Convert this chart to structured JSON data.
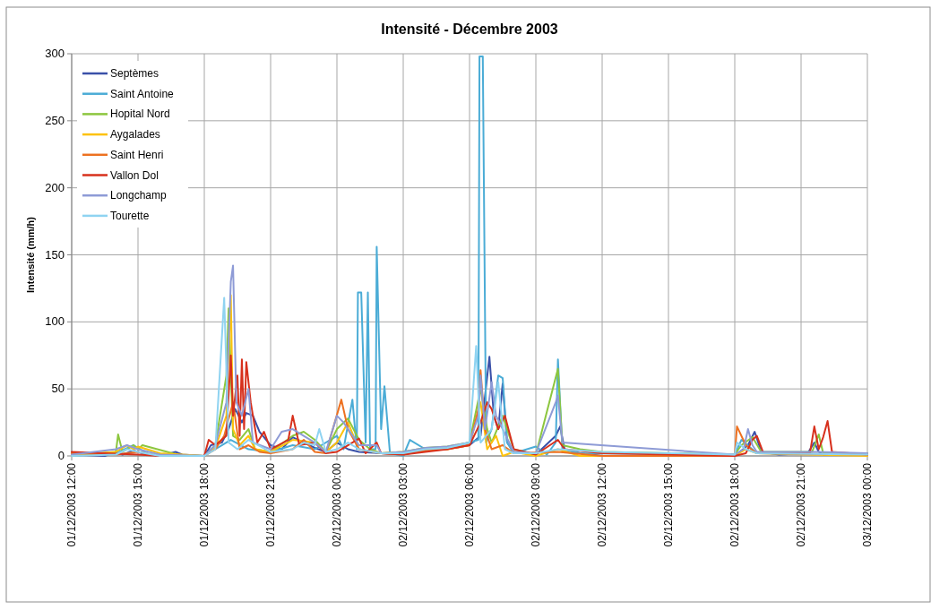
{
  "chart_data": {
    "type": "line",
    "title": "Intensité - Décembre 2003",
    "ylabel": "Intensité (mm/h)",
    "xlim": [
      "2003-12-01T12:00",
      "2003-12-03T00:00"
    ],
    "ylim": [
      0,
      300
    ],
    "yticks": [
      0,
      50,
      100,
      150,
      200,
      250,
      300
    ],
    "xticks": [
      {
        "value": "2003-12-01T12:00",
        "label": "01/12/2003 12:00"
      },
      {
        "value": "2003-12-01T15:00",
        "label": "01/12/2003 15:00"
      },
      {
        "value": "2003-12-01T18:00",
        "label": "01/12/2003 18:00"
      },
      {
        "value": "2003-12-01T21:00",
        "label": "01/12/2003 21:00"
      },
      {
        "value": "2003-12-02T00:00",
        "label": "02/12/2003 00:00"
      },
      {
        "value": "2003-12-02T03:00",
        "label": "02/12/2003 03:00"
      },
      {
        "value": "2003-12-02T06:00",
        "label": "02/12/2003 06:00"
      },
      {
        "value": "2003-12-02T09:00",
        "label": "02/12/2003 09:00"
      },
      {
        "value": "2003-12-02T12:00",
        "label": "02/12/2003 12:00"
      },
      {
        "value": "2003-12-02T15:00",
        "label": "02/12/2003 15:00"
      },
      {
        "value": "2003-12-02T18:00",
        "label": "02/12/2003 18:00"
      },
      {
        "value": "2003-12-02T21:00",
        "label": "02/12/2003 21:00"
      },
      {
        "value": "2003-12-03T00:00",
        "label": "03/12/2003 00:00"
      }
    ],
    "grid": true,
    "legend": "top left",
    "marker": "none",
    "line_style": "solid",
    "series": [
      {
        "name": "Septèmes",
        "color": "#3a50a8",
        "x": [
          "2003-12-01T12:00",
          "2003-12-01T13:30",
          "2003-12-01T14:00",
          "2003-12-01T14:18",
          "2003-12-01T14:48",
          "2003-12-01T15:12",
          "2003-12-01T16:00",
          "2003-12-01T16:42",
          "2003-12-01T17:00",
          "2003-12-01T18:00",
          "2003-12-01T18:18",
          "2003-12-01T18:48",
          "2003-12-01T19:06",
          "2003-12-01T19:24",
          "2003-12-01T19:42",
          "2003-12-01T19:54",
          "2003-12-01T20:12",
          "2003-12-01T20:30",
          "2003-12-01T21:00",
          "2003-12-01T21:30",
          "2003-12-01T22:00",
          "2003-12-01T22:30",
          "2003-12-01T23:00",
          "2003-12-01T23:30",
          "2003-12-02T00:00",
          "2003-12-02T00:30",
          "2003-12-02T01:00",
          "2003-12-02T02:00",
          "2003-12-02T03:00",
          "2003-12-02T04:00",
          "2003-12-02T05:00",
          "2003-12-02T06:00",
          "2003-12-02T06:30",
          "2003-12-02T06:54",
          "2003-12-02T07:06",
          "2003-12-02T07:18",
          "2003-12-02T07:30",
          "2003-12-02T07:42",
          "2003-12-02T08:00",
          "2003-12-02T09:00",
          "2003-12-02T09:54",
          "2003-12-02T10:06",
          "2003-12-02T10:18",
          "2003-12-02T11:00",
          "2003-12-02T12:00",
          "2003-12-02T18:00",
          "2003-12-02T18:36",
          "2003-12-02T18:54",
          "2003-12-02T19:12",
          "2003-12-02T20:00",
          "2003-12-02T21:18",
          "2003-12-02T21:36",
          "2003-12-02T21:48",
          "2003-12-02T22:00",
          "2003-12-03T00:00"
        ],
        "values": [
          1,
          0,
          3,
          1,
          4,
          2,
          0,
          3,
          1,
          0,
          8,
          10,
          20,
          35,
          25,
          32,
          30,
          18,
          8,
          5,
          14,
          10,
          6,
          3,
          10,
          5,
          3,
          2,
          1,
          5,
          6,
          8,
          15,
          74,
          30,
          20,
          54,
          10,
          3,
          1,
          15,
          22,
          5,
          2,
          0,
          0,
          8,
          18,
          3,
          1,
          2,
          10,
          3,
          1,
          1
        ]
      },
      {
        "name": "Saint Antoine",
        "color": "#4bacd6",
        "x": [
          "2003-12-01T12:00",
          "2003-12-01T14:00",
          "2003-12-01T14:48",
          "2003-12-01T15:30",
          "2003-12-01T18:00",
          "2003-12-01T18:30",
          "2003-12-01T19:12",
          "2003-12-01T20:00",
          "2003-12-01T21:00",
          "2003-12-01T22:00",
          "2003-12-01T23:00",
          "2003-12-02T00:00",
          "2003-12-02T00:18",
          "2003-12-02T00:42",
          "2003-12-02T00:54",
          "2003-12-02T00:57",
          "2003-12-02T01:06",
          "2003-12-02T01:18",
          "2003-12-02T01:24",
          "2003-12-02T01:30",
          "2003-12-02T01:45",
          "2003-12-02T01:48",
          "2003-12-02T02:00",
          "2003-12-02T02:09",
          "2003-12-02T02:24",
          "2003-12-02T03:00",
          "2003-12-02T03:18",
          "2003-12-02T04:00",
          "2003-12-02T05:00",
          "2003-12-02T06:00",
          "2003-12-02T06:24",
          "2003-12-02T06:27",
          "2003-12-02T06:36",
          "2003-12-02T06:45",
          "2003-12-02T07:00",
          "2003-12-02T07:18",
          "2003-12-02T07:30",
          "2003-12-02T07:42",
          "2003-12-02T08:00",
          "2003-12-02T09:00",
          "2003-12-02T09:30",
          "2003-12-02T09:54",
          "2003-12-02T10:00",
          "2003-12-02T10:12",
          "2003-12-02T11:00",
          "2003-12-02T18:00",
          "2003-12-02T18:18",
          "2003-12-02T19:00",
          "2003-12-03T00:00"
        ],
        "values": [
          0,
          2,
          8,
          1,
          0,
          5,
          12,
          5,
          3,
          8,
          5,
          15,
          5,
          42,
          5,
          122,
          122,
          10,
          122,
          5,
          5,
          156,
          20,
          52,
          2,
          0,
          12,
          5,
          6,
          10,
          12,
          298,
          298,
          10,
          20,
          60,
          58,
          10,
          2,
          7,
          1,
          10,
          72,
          5,
          2,
          1,
          12,
          2,
          1
        ]
      },
      {
        "name": "Hopital Nord",
        "color": "#8cc63e",
        "x": [
          "2003-12-01T12:00",
          "2003-12-01T14:00",
          "2003-12-01T14:06",
          "2003-12-01T14:18",
          "2003-12-01T14:48",
          "2003-12-01T15:00",
          "2003-12-01T15:12",
          "2003-12-01T17:00",
          "2003-12-01T18:00",
          "2003-12-01T18:30",
          "2003-12-01T19:00",
          "2003-12-01T19:06",
          "2003-12-01T19:18",
          "2003-12-01T19:36",
          "2003-12-01T20:00",
          "2003-12-01T20:18",
          "2003-12-01T21:00",
          "2003-12-01T22:00",
          "2003-12-01T22:30",
          "2003-12-01T23:00",
          "2003-12-01T23:30",
          "2003-12-02T00:00",
          "2003-12-02T00:30",
          "2003-12-02T01:00",
          "2003-12-02T01:30",
          "2003-12-02T02:00",
          "2003-12-02T03:00",
          "2003-12-02T04:00",
          "2003-12-02T05:00",
          "2003-12-02T06:00",
          "2003-12-02T06:30",
          "2003-12-02T06:48",
          "2003-12-02T07:00",
          "2003-12-02T07:30",
          "2003-12-02T08:00",
          "2003-12-02T09:00",
          "2003-12-02T10:00",
          "2003-12-02T10:12",
          "2003-12-02T11:00",
          "2003-12-02T12:00",
          "2003-12-02T18:00",
          "2003-12-02T18:18",
          "2003-12-02T18:48",
          "2003-12-02T19:12",
          "2003-12-02T21:30",
          "2003-12-02T21:48",
          "2003-12-02T22:00",
          "2003-12-03T00:00"
        ],
        "values": [
          0,
          3,
          16,
          3,
          8,
          5,
          8,
          0,
          0,
          8,
          60,
          110,
          15,
          12,
          20,
          5,
          3,
          15,
          18,
          12,
          3,
          20,
          28,
          12,
          5,
          2,
          3,
          6,
          7,
          10,
          50,
          20,
          10,
          30,
          5,
          1,
          65,
          8,
          5,
          3,
          1,
          8,
          14,
          3,
          3,
          16,
          2,
          2
        ]
      },
      {
        "name": "Aygalades",
        "color": "#fdc20c",
        "x": [
          "2003-12-01T12:00",
          "2003-12-01T14:00",
          "2003-12-01T14:30",
          "2003-12-01T14:48",
          "2003-12-01T15:00",
          "2003-12-01T16:00",
          "2003-12-01T18:00",
          "2003-12-01T18:30",
          "2003-12-01T19:00",
          "2003-12-01T19:12",
          "2003-12-01T19:18",
          "2003-12-01T19:36",
          "2003-12-01T20:00",
          "2003-12-01T20:18",
          "2003-12-01T21:00",
          "2003-12-01T22:00",
          "2003-12-01T23:00",
          "2003-12-01T23:30",
          "2003-12-02T00:00",
          "2003-12-02T00:30",
          "2003-12-02T01:00",
          "2003-12-02T02:00",
          "2003-12-02T03:00",
          "2003-12-02T04:00",
          "2003-12-02T05:00",
          "2003-12-02T06:00",
          "2003-12-02T06:30",
          "2003-12-02T06:48",
          "2003-12-02T07:12",
          "2003-12-02T07:30",
          "2003-12-02T08:00",
          "2003-12-02T09:00",
          "2003-12-02T10:00",
          "2003-12-02T11:00",
          "2003-12-02T18:00",
          "2003-12-02T18:30",
          "2003-12-02T19:00",
          "2003-12-03T00:00"
        ],
        "values": [
          1,
          3,
          8,
          5,
          7,
          2,
          0,
          6,
          30,
          120,
          20,
          8,
          15,
          5,
          3,
          12,
          10,
          3,
          10,
          25,
          5,
          2,
          3,
          5,
          5,
          8,
          40,
          5,
          15,
          0,
          3,
          0,
          5,
          0,
          0,
          5,
          2,
          0
        ]
      },
      {
        "name": "Saint Henri",
        "color": "#ed7121",
        "x": [
          "2003-12-01T12:00",
          "2003-12-01T14:00",
          "2003-12-01T15:00",
          "2003-12-01T16:00",
          "2003-12-01T18:00",
          "2003-12-01T18:30",
          "2003-12-01T18:54",
          "2003-12-01T19:18",
          "2003-12-01T19:36",
          "2003-12-01T20:00",
          "2003-12-01T20:30",
          "2003-12-01T21:00",
          "2003-12-01T22:00",
          "2003-12-01T22:30",
          "2003-12-01T23:00",
          "2003-12-01T23:30",
          "2003-12-02T00:12",
          "2003-12-02T00:30",
          "2003-12-02T01:00",
          "2003-12-02T02:00",
          "2003-12-02T03:00",
          "2003-12-02T04:00",
          "2003-12-02T05:00",
          "2003-12-02T06:00",
          "2003-12-02T06:24",
          "2003-12-02T06:30",
          "2003-12-02T06:42",
          "2003-12-02T07:00",
          "2003-12-02T07:30",
          "2003-12-02T08:00",
          "2003-12-02T10:00",
          "2003-12-02T12:00",
          "2003-12-02T18:00",
          "2003-12-02T18:06",
          "2003-12-02T18:30",
          "2003-12-02T19:00",
          "2003-12-03T00:00"
        ],
        "values": [
          2,
          1,
          3,
          0,
          0,
          5,
          15,
          40,
          5,
          8,
          3,
          2,
          5,
          12,
          3,
          2,
          42,
          20,
          5,
          2,
          1,
          4,
          5,
          8,
          35,
          64,
          20,
          5,
          8,
          2,
          3,
          0,
          0,
          22,
          8,
          2,
          1
        ]
      },
      {
        "name": "Vallon Dol",
        "color": "#d7301c",
        "x": [
          "2003-12-01T12:00",
          "2003-12-01T15:00",
          "2003-12-01T16:00",
          "2003-12-01T18:00",
          "2003-12-01T18:12",
          "2003-12-01T18:30",
          "2003-12-01T19:00",
          "2003-12-01T19:12",
          "2003-12-01T19:18",
          "2003-12-01T19:30",
          "2003-12-01T19:36",
          "2003-12-01T19:42",
          "2003-12-01T19:48",
          "2003-12-01T19:54",
          "2003-12-01T20:06",
          "2003-12-01T20:24",
          "2003-12-01T20:42",
          "2003-12-01T21:00",
          "2003-12-01T21:48",
          "2003-12-01T22:00",
          "2003-12-01T22:18",
          "2003-12-01T23:00",
          "2003-12-01T23:30",
          "2003-12-02T00:00",
          "2003-12-02T00:30",
          "2003-12-02T01:00",
          "2003-12-02T01:18",
          "2003-12-02T01:48",
          "2003-12-02T02:00",
          "2003-12-02T03:00",
          "2003-12-02T04:00",
          "2003-12-02T05:00",
          "2003-12-02T06:00",
          "2003-12-02T06:30",
          "2003-12-02T06:48",
          "2003-12-02T07:00",
          "2003-12-02T07:18",
          "2003-12-02T07:36",
          "2003-12-02T08:00",
          "2003-12-02T09:00",
          "2003-12-02T10:00",
          "2003-12-02T10:18",
          "2003-12-02T12:00",
          "2003-12-02T18:00",
          "2003-12-02T18:30",
          "2003-12-02T18:48",
          "2003-12-02T19:00",
          "2003-12-02T19:18",
          "2003-12-02T21:24",
          "2003-12-02T21:36",
          "2003-12-02T21:48",
          "2003-12-02T22:00",
          "2003-12-02T22:12",
          "2003-12-02T22:24",
          "2003-12-03T00:00"
        ],
        "values": [
          3,
          1,
          0,
          0,
          12,
          8,
          15,
          75,
          30,
          60,
          15,
          72,
          20,
          70,
          40,
          10,
          18,
          5,
          12,
          30,
          8,
          10,
          2,
          3,
          8,
          13,
          2,
          10,
          2,
          1,
          3,
          5,
          8,
          25,
          40,
          35,
          20,
          30,
          5,
          1,
          12,
          5,
          2,
          0,
          2,
          12,
          15,
          2,
          2,
          22,
          5,
          14,
          26,
          3,
          1
        ]
      },
      {
        "name": "Longchamp",
        "color": "#8e9bd6",
        "x": [
          "2003-12-01T12:00",
          "2003-12-01T14:00",
          "2003-12-01T14:30",
          "2003-12-01T15:00",
          "2003-12-01T16:00",
          "2003-12-01T18:00",
          "2003-12-01T18:30",
          "2003-12-01T19:00",
          "2003-12-01T19:12",
          "2003-12-01T19:18",
          "2003-12-01T19:27",
          "2003-12-01T19:42",
          "2003-12-01T20:00",
          "2003-12-01T20:12",
          "2003-12-01T21:00",
          "2003-12-01T21:30",
          "2003-12-01T22:00",
          "2003-12-01T22:30",
          "2003-12-01T23:00",
          "2003-12-01T23:30",
          "2003-12-02T00:00",
          "2003-12-02T00:18",
          "2003-12-02T01:00",
          "2003-12-02T01:48",
          "2003-12-02T02:00",
          "2003-12-02T03:00",
          "2003-12-02T04:00",
          "2003-12-02T05:00",
          "2003-12-02T06:00",
          "2003-12-02T06:24",
          "2003-12-02T06:30",
          "2003-12-02T06:42",
          "2003-12-02T07:00",
          "2003-12-02T07:12",
          "2003-12-02T07:30",
          "2003-12-02T08:00",
          "2003-12-02T09:00",
          "2003-12-02T09:54",
          "2003-12-02T10:00",
          "2003-12-02T10:12",
          "2003-12-02T18:00",
          "2003-12-02T18:24",
          "2003-12-02T18:36",
          "2003-12-02T18:48",
          "2003-12-02T19:00",
          "2003-12-02T21:30",
          "2003-12-02T21:48",
          "2003-12-03T00:00"
        ],
        "values": [
          1,
          5,
          8,
          5,
          1,
          0,
          8,
          40,
          130,
          142,
          40,
          30,
          50,
          10,
          5,
          18,
          20,
          15,
          10,
          3,
          30,
          25,
          8,
          8,
          2,
          3,
          6,
          7,
          10,
          30,
          60,
          20,
          55,
          30,
          20,
          3,
          2,
          40,
          45,
          10,
          1,
          5,
          20,
          8,
          3,
          3,
          3,
          2
        ]
      },
      {
        "name": "Tourette",
        "color": "#8fd3f1",
        "x": [
          "2003-12-01T12:00",
          "2003-12-01T14:00",
          "2003-12-01T14:30",
          "2003-12-01T15:00",
          "2003-12-01T16:00",
          "2003-12-01T18:00",
          "2003-12-01T18:30",
          "2003-12-01T18:54",
          "2003-12-01T19:06",
          "2003-12-01T19:30",
          "2003-12-01T20:00",
          "2003-12-01T21:00",
          "2003-12-01T22:00",
          "2003-12-01T22:30",
          "2003-12-01T23:00",
          "2003-12-01T23:12",
          "2003-12-01T23:30",
          "2003-12-02T00:00",
          "2003-12-02T00:30",
          "2003-12-02T01:00",
          "2003-12-02T02:00",
          "2003-12-02T03:00",
          "2003-12-02T04:00",
          "2003-12-02T05:00",
          "2003-12-02T06:00",
          "2003-12-02T06:18",
          "2003-12-02T06:30",
          "2003-12-02T07:00",
          "2003-12-02T07:18",
          "2003-12-02T07:36",
          "2003-12-02T08:00",
          "2003-12-02T09:00",
          "2003-12-02T10:00",
          "2003-12-02T12:00",
          "2003-12-02T18:00",
          "2003-12-02T18:06",
          "2003-12-02T18:30",
          "2003-12-02T19:00",
          "2003-12-03T00:00"
        ],
        "values": [
          0,
          1,
          5,
          3,
          0,
          0,
          5,
          118,
          10,
          5,
          12,
          3,
          5,
          10,
          8,
          20,
          3,
          5,
          10,
          5,
          2,
          2,
          5,
          6,
          10,
          82,
          10,
          20,
          55,
          5,
          2,
          2,
          5,
          3,
          1,
          10,
          5,
          2,
          1
        ]
      }
    ]
  }
}
